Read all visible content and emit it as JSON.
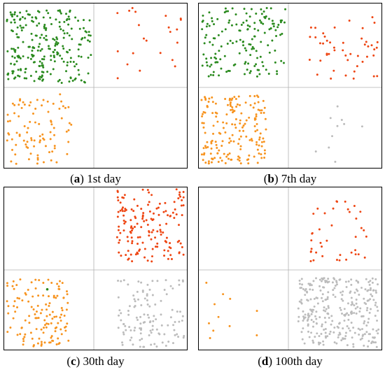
{
  "colors": {
    "green": "#2a8a1e",
    "red": "#ee4512",
    "orange": "#f7931e",
    "gray": "#bcbcbc",
    "divider": "#b0b0b0"
  },
  "panels": [
    {
      "letter": "a",
      "caption": "1st day",
      "counts": {
        "top_left": 250,
        "top_right": 22,
        "bottom_left": 90,
        "bottom_right": 0
      }
    },
    {
      "letter": "b",
      "caption": "7th day",
      "counts": {
        "top_left": 160,
        "top_right": 48,
        "bottom_left": 180,
        "bottom_right": 10
      }
    },
    {
      "letter": "c",
      "caption": "30th day",
      "counts": {
        "top_left": 0,
        "top_right": 155,
        "bottom_left": 130,
        "bottom_right": 120
      }
    },
    {
      "letter": "d",
      "caption": "100th day",
      "counts": {
        "top_left": 0,
        "top_right": 40,
        "bottom_left": 11,
        "bottom_right": 300
      }
    }
  ]
}
